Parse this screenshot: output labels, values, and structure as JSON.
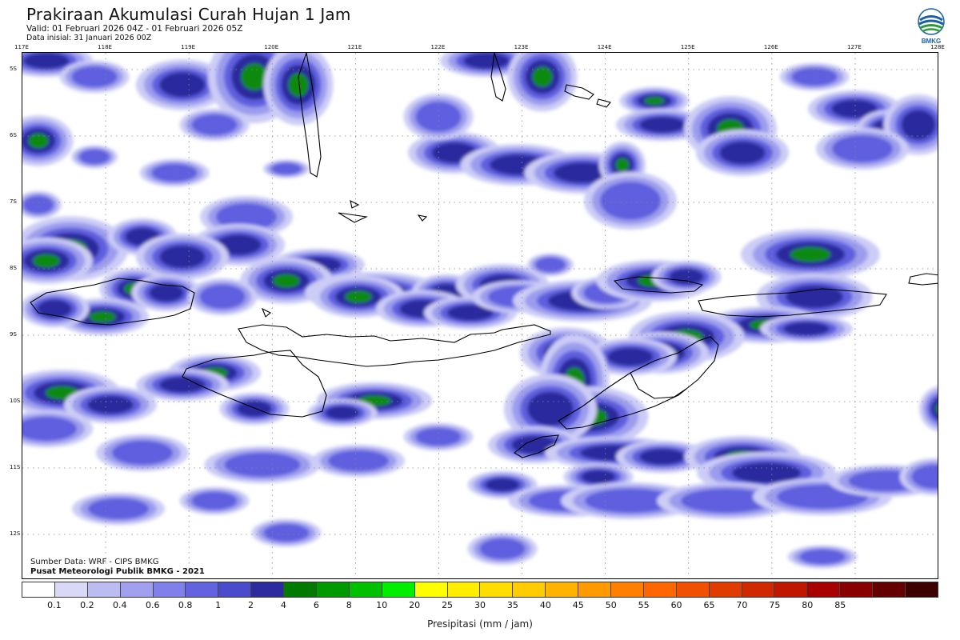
{
  "header": {
    "title": "Prakiraan Akumulasi Curah Hujan 1 Jam",
    "valid": "Valid: 01 Februari 2026 04Z - 01 Februari 2026 05Z",
    "initial": "Data inisial: 31 Januari 2026 00Z"
  },
  "logo": {
    "label": "BMKG",
    "icon": "bmkg-logo-icon"
  },
  "axes": {
    "longitudes": [
      "117E",
      "118E",
      "119E",
      "120E",
      "121E",
      "122E",
      "123E",
      "124E",
      "125E",
      "126E",
      "127E",
      "128E"
    ],
    "latitudes": [
      "5S",
      "6S",
      "7S",
      "8S",
      "9S",
      "10S",
      "11S",
      "12S"
    ]
  },
  "credits": {
    "source": "Sumber Data: WRF - CIPS BMKG",
    "center": "Pusat Meteorologi Publik BMKG - 2021"
  },
  "legend": {
    "unit": "Presipitasi (mm / jam)",
    "colors": [
      "#ffffff",
      "#d9d9f7",
      "#bcbcf2",
      "#a0a0ee",
      "#8080ea",
      "#6363e0",
      "#4a4acd",
      "#2b2b9e",
      "#007a00",
      "#009900",
      "#00c000",
      "#00ee00",
      "#ffff00",
      "#ffee00",
      "#ffdd00",
      "#ffcc00",
      "#ffb300",
      "#ff9900",
      "#ff8000",
      "#ff6600",
      "#f05000",
      "#e03c00",
      "#d02800",
      "#c01800",
      "#a80000",
      "#880000",
      "#640000",
      "#3c0000"
    ],
    "ticks": [
      "0.1",
      "0.2",
      "0.4",
      "0.6",
      "0.8",
      "1",
      "2",
      "4",
      "6",
      "8",
      "10",
      "20",
      "25",
      "30",
      "35",
      "40",
      "45",
      "50",
      "55",
      "60",
      "65",
      "70",
      "75",
      "80",
      "85"
    ]
  }
}
